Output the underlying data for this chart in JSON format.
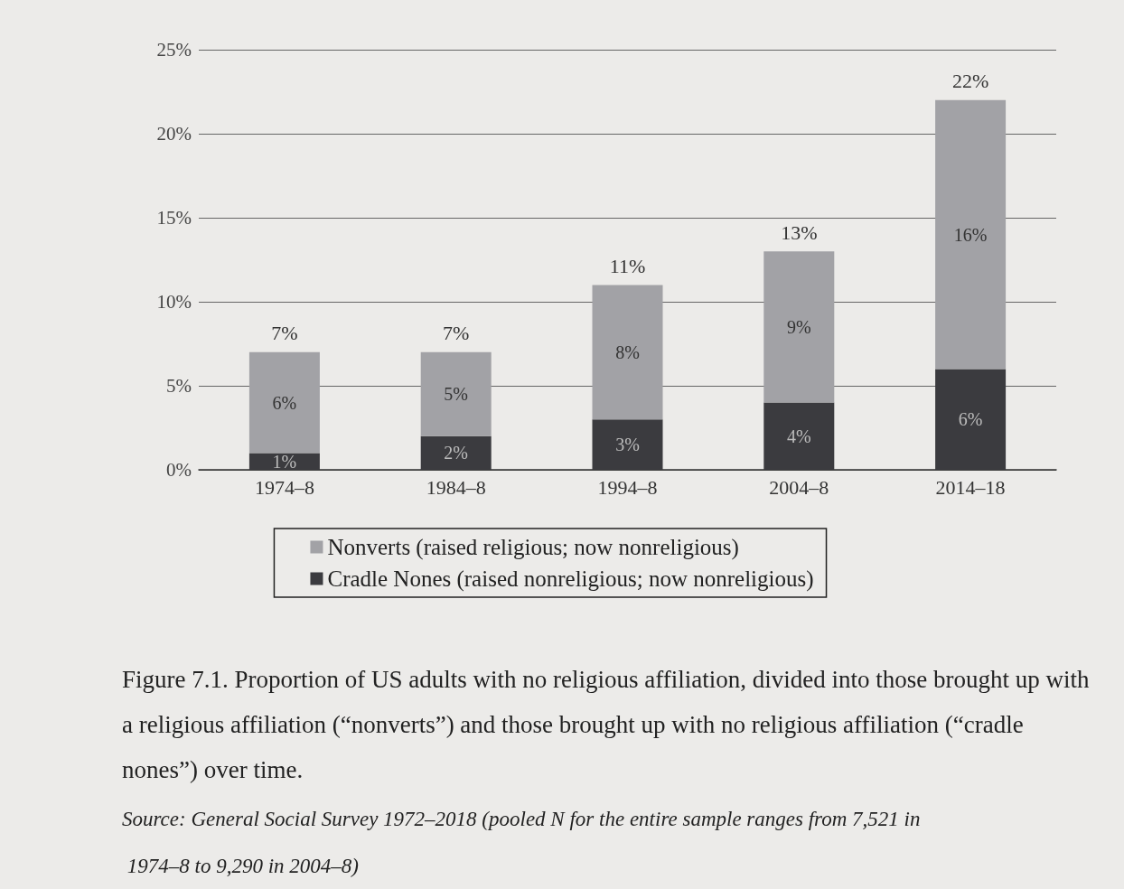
{
  "chart_data": {
    "type": "bar",
    "stacked": true,
    "title": "Figure 7.1. Proportion of US adults with no religious affiliation, divided into those brought up with a religious affiliation (“nonverts”) and those brought up with no religious affiliation (“cradle nones”) over time.",
    "annotations": [
      "Source: General Social Survey 1972–2018 (pooled N for the entire sample ranges from 7,521 in 1974–8 to 9,290 in 2004–8)"
    ],
    "categories": [
      "1974–8",
      "1984–8",
      "1994–8",
      "2004–8",
      "2014–18"
    ],
    "series": [
      {
        "name": "Cradle Nones (raised nonreligious; now nonreligious)",
        "color": "#3b3b3f",
        "values": [
          1,
          2,
          3,
          4,
          6
        ],
        "value_labels": [
          "1%",
          "2%",
          "3%",
          "4%",
          "6%"
        ]
      },
      {
        "name": "Nonverts (raised religious; now nonreligious)",
        "color": "#a2a2a6",
        "values": [
          6,
          5,
          8,
          9,
          16
        ],
        "value_labels": [
          "6%",
          "5%",
          "8%",
          "9%",
          "16%"
        ]
      }
    ],
    "totals": [
      "7%",
      "7%",
      "11%",
      "13%",
      "22%"
    ],
    "ylim": [
      0,
      25
    ],
    "yticks": [
      {
        "value": 0,
        "label": "0%"
      },
      {
        "value": 5,
        "label": "5%"
      },
      {
        "value": 10,
        "label": "10%"
      },
      {
        "value": 15,
        "label": "15%"
      },
      {
        "value": 20,
        "label": "20%"
      },
      {
        "value": 25,
        "label": "25%"
      }
    ],
    "grid": "y",
    "legend": "bottom"
  }
}
